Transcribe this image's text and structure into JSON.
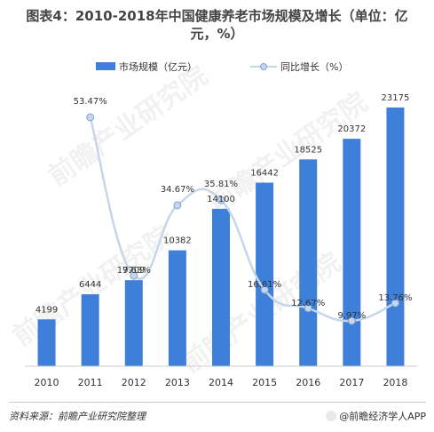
{
  "title_line1": "图表4：2010-2018年中国健康养老市场规模及增长（单位：亿",
  "title_line2": "元，%）",
  "watermark_text": "前瞻产业研究院",
  "footer": {
    "source": "资料来源：前瞻产业研究院整理",
    "brand": "@前瞻经济学人APP"
  },
  "colors": {
    "bar": "#3d7fd9",
    "line": "#c6d6ea",
    "marker": "#c6d6ea",
    "marker_stroke": "#7fa3d1"
  },
  "chart_data": {
    "type": "bar",
    "categories": [
      "2010",
      "2011",
      "2012",
      "2013",
      "2014",
      "2015",
      "2016",
      "2017",
      "2018"
    ],
    "series": [
      {
        "name": "市场规模（亿元）",
        "type": "bar",
        "values": [
          4199,
          6444,
          7709,
          10382,
          14100,
          16442,
          18525,
          20372,
          23175
        ],
        "labels": [
          "4199",
          "6444",
          "7709",
          "10382",
          "14100",
          "16442",
          "18525",
          "20372",
          "23175"
        ]
      },
      {
        "name": "同比增长（%）",
        "type": "line",
        "smooth": true,
        "values": [
          null,
          53.47,
          19.63,
          34.67,
          35.81,
          16.61,
          12.67,
          9.97,
          13.76
        ],
        "labels": [
          "",
          "53.47%",
          "19.63%",
          "34.67%",
          "35.81%",
          "16.61%",
          "12.67%",
          "9.97%",
          "13.76%"
        ]
      }
    ],
    "legend_position": "top",
    "grid": false
  }
}
